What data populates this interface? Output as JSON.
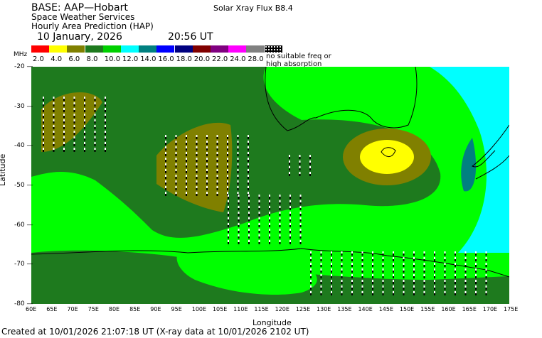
{
  "header": {
    "base": "BASE: AAP—Hobart",
    "service": "Space Weather Services",
    "product": "Hourly Area Prediction (HAP)",
    "date": "10 January, 2026",
    "time": "20:56 UT",
    "flux": "Solar Xray Flux B8.4"
  },
  "legend": {
    "unit": "MHz",
    "no_suitable": "no suitable freq or high absorption",
    "items": [
      {
        "label": "2.0",
        "color": "#ff0000"
      },
      {
        "label": "4.0",
        "color": "#ffff00"
      },
      {
        "label": "6.0",
        "color": "#808000"
      },
      {
        "label": "8.0",
        "color": "#1e7a1e"
      },
      {
        "label": "10.0",
        "color": "#00d000"
      },
      {
        "label": "12.0",
        "color": "#00ffff"
      },
      {
        "label": "14.0",
        "color": "#008080"
      },
      {
        "label": "16.0",
        "color": "#0000ff"
      },
      {
        "label": "18.0",
        "color": "#000080"
      },
      {
        "label": "20.0",
        "color": "#800000"
      },
      {
        "label": "22.0",
        "color": "#800080"
      },
      {
        "label": "24.0",
        "color": "#ff00ff"
      },
      {
        "label": "28.0",
        "color": "#808080"
      }
    ]
  },
  "axes": {
    "xlabel": "Longitude",
    "ylabel": "Latitude",
    "x_ticks": [
      "60E",
      "65E",
      "70E",
      "75E",
      "80E",
      "85E",
      "90E",
      "95E",
      "100E",
      "105E",
      "110E",
      "115E",
      "120E",
      "125E",
      "130E",
      "135E",
      "140E",
      "145E",
      "150E",
      "155E",
      "160E",
      "165E",
      "170E",
      "175E"
    ],
    "y_ticks": [
      "-20",
      "-30",
      "-40",
      "-50",
      "-60",
      "-70",
      "-80"
    ],
    "lon_range": [
      60,
      175
    ],
    "lat_range": [
      -20,
      -80
    ]
  },
  "footer": "Created at 10/01/2026 21:07:18 UT (X-ray data at 10/01/2026 2102 UT)",
  "map_colors": {
    "light_green": "#00ff00",
    "dark_green": "#1e7a1e",
    "olive": "#808000",
    "yellow": "#ffff00",
    "cyan": "#00ffff",
    "teal": "#008080",
    "coast": "#000000"
  }
}
